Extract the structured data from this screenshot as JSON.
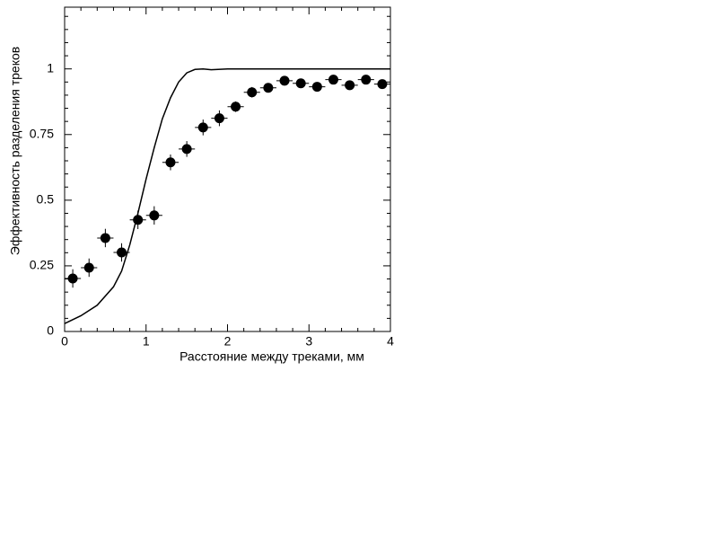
{
  "chart_data": {
    "type": "scatter",
    "xlabel": "Расстояние между треками, мм",
    "ylabel": "Эффективность разделения треков",
    "xlim": [
      0,
      4
    ],
    "ylim": [
      0,
      1.235
    ],
    "xticks": [
      0,
      1,
      2,
      3,
      4
    ],
    "yticks": [
      0,
      0.25,
      0.5,
      0.75,
      1
    ],
    "xminorticks": [
      0.2,
      0.4,
      0.6,
      0.8,
      1.2,
      1.4,
      1.6,
      1.8,
      2.2,
      2.4,
      2.6,
      2.8,
      3.2,
      3.4,
      3.6,
      3.8
    ],
    "yminorticks": [
      0.05,
      0.1,
      0.15,
      0.2,
      0.3,
      0.35,
      0.4,
      0.45,
      0.55,
      0.6,
      0.65,
      0.7,
      0.8,
      0.85,
      0.9,
      0.95,
      1.05,
      1.1,
      1.15,
      1.2
    ],
    "points": {
      "color": "#000000",
      "x": [
        0.1,
        0.3,
        0.5,
        0.7,
        0.9,
        1.1,
        1.3,
        1.5,
        1.7,
        1.9,
        2.1,
        2.3,
        2.5,
        2.7,
        2.9,
        3.1,
        3.3,
        3.5,
        3.7,
        3.9
      ],
      "values": [
        0.202,
        0.243,
        0.356,
        0.301,
        0.425,
        0.442,
        0.644,
        0.695,
        0.777,
        0.812,
        0.856,
        0.911,
        0.928,
        0.955,
        0.945,
        0.932,
        0.959,
        0.938,
        0.959,
        0.942
      ],
      "yerr": [
        0.035,
        0.035,
        0.035,
        0.035,
        0.035,
        0.035,
        0.03,
        0.03,
        0.03,
        0.03,
        0.02,
        0.02,
        0.015,
        0.015,
        0.015,
        0.015,
        0.015,
        0.015,
        0.015,
        0.015
      ],
      "xerr": [
        0.1,
        0.1,
        0.1,
        0.1,
        0.1,
        0.1,
        0.1,
        0.1,
        0.1,
        0.1,
        0.1,
        0.1,
        0.1,
        0.1,
        0.1,
        0.1,
        0.1,
        0.1,
        0.1,
        0.1
      ]
    },
    "curve": {
      "color": "#000000",
      "x": [
        0,
        0.2,
        0.4,
        0.6,
        0.7,
        0.8,
        0.9,
        1.0,
        1.1,
        1.2,
        1.3,
        1.4,
        1.5,
        1.6,
        1.7,
        1.8,
        2.0,
        4.0
      ],
      "values": [
        0.03,
        0.06,
        0.1,
        0.17,
        0.23,
        0.33,
        0.45,
        0.58,
        0.7,
        0.81,
        0.89,
        0.95,
        0.985,
        0.998,
        1.0,
        0.997,
        1.0,
        1.0
      ]
    }
  }
}
